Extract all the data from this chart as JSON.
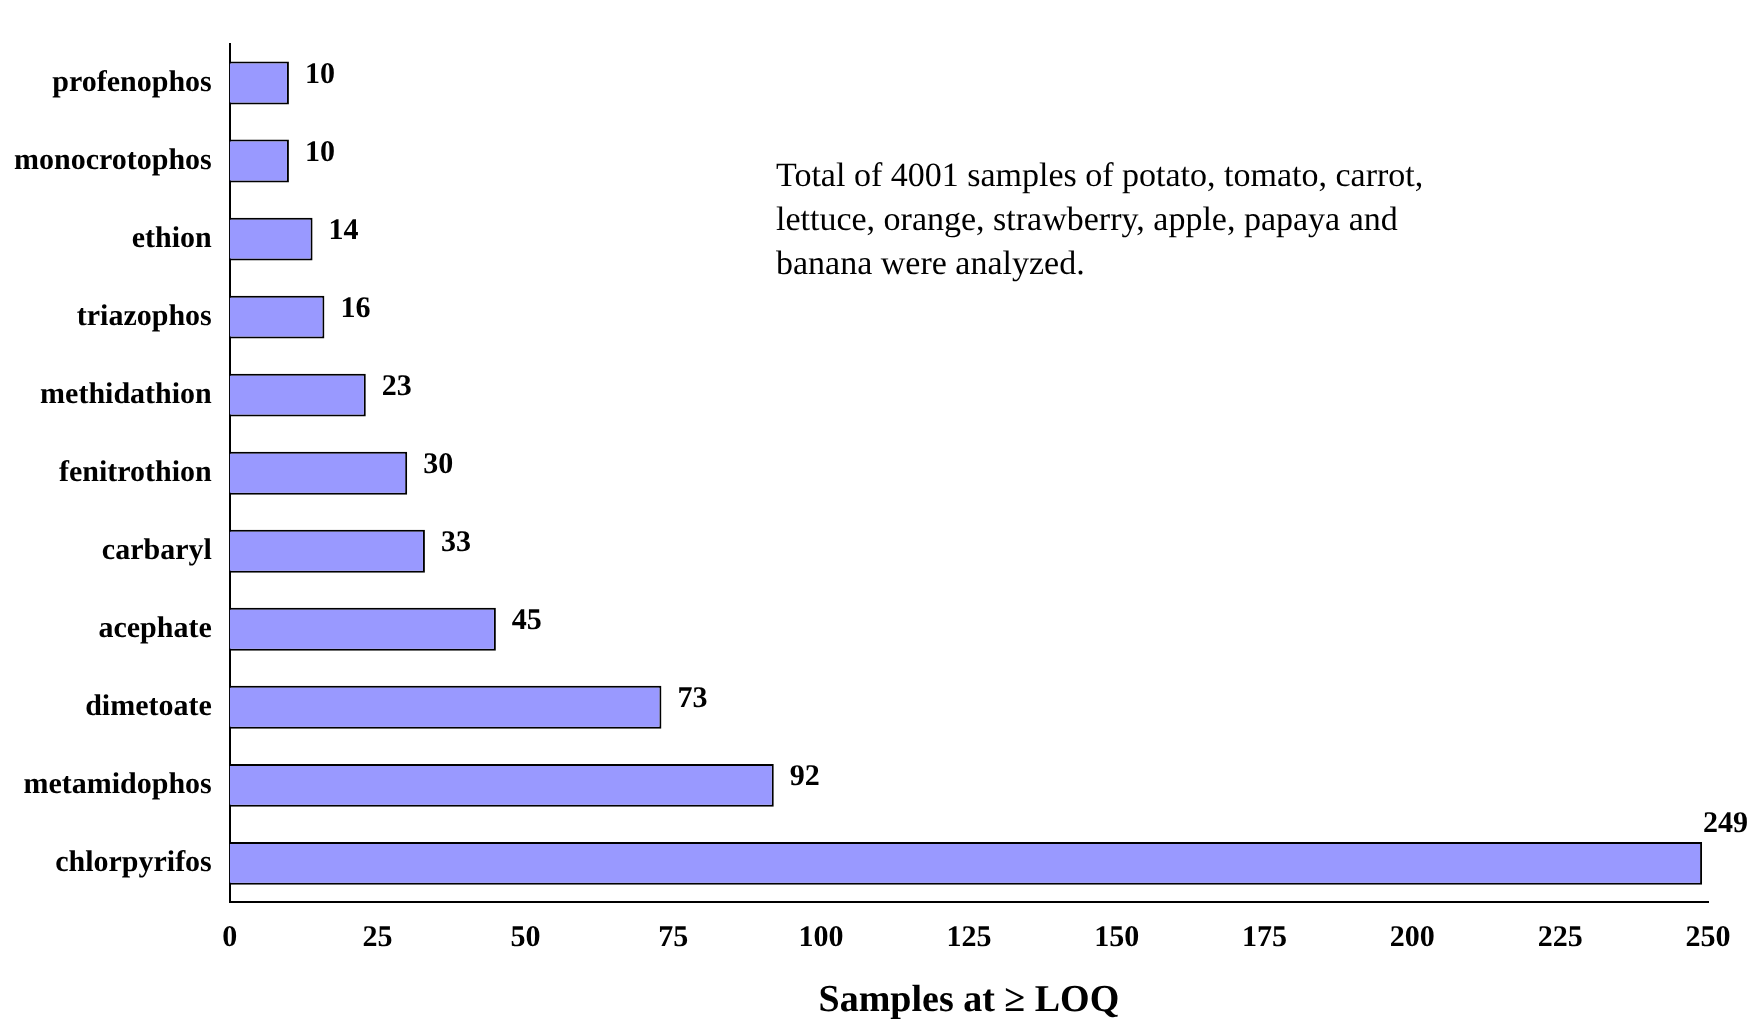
{
  "chart_data": {
    "type": "bar",
    "orientation": "horizontal",
    "categories": [
      "profenophos",
      "monocrotophos",
      "ethion",
      "triazophos",
      "methidathion",
      "fenitrothion",
      "carbaryl",
      "acephate",
      "dimetoate",
      "metamidophos",
      "chlorpyrifos"
    ],
    "values": [
      10,
      10,
      14,
      16,
      23,
      30,
      33,
      45,
      73,
      92,
      249
    ],
    "color": "#9999ff",
    "xlim": [
      0,
      250
    ],
    "xticks": [
      0,
      25,
      50,
      75,
      100,
      125,
      150,
      175,
      200,
      225,
      250
    ],
    "xlabel": "Samples at ≥ LOQ",
    "data_labels": true,
    "grid": false,
    "legend": false,
    "annotations": [
      "Total of 4001 samples of potato, tomato, carrot, lettuce, orange, strawberry, apple, papaya and banana were analyzed."
    ]
  }
}
